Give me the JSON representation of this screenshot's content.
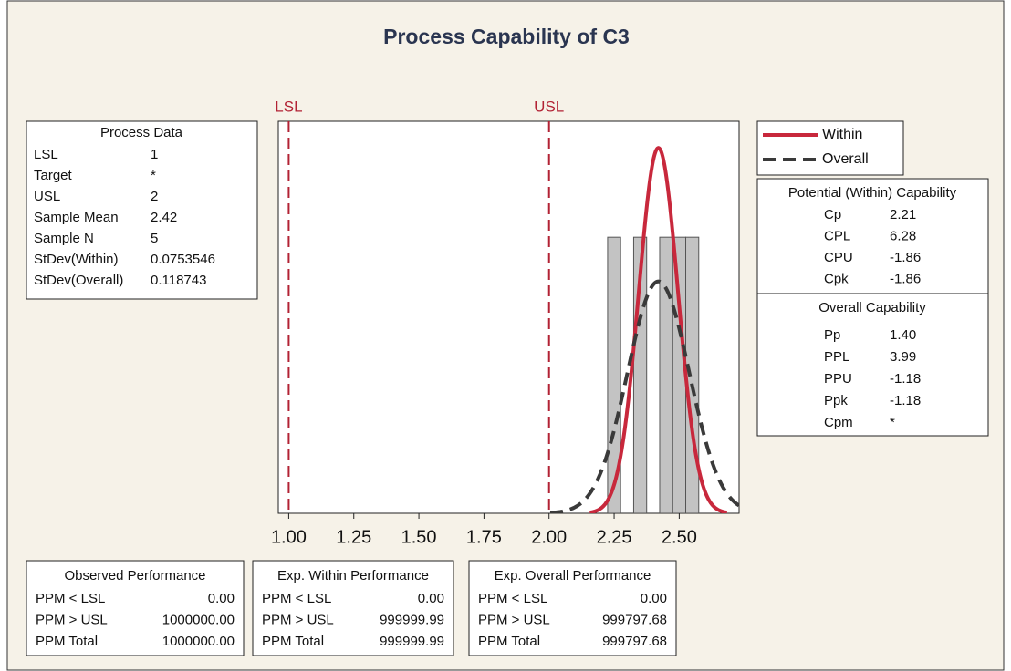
{
  "chart_data": {
    "type": "histogram",
    "title": "Process Capability of C3",
    "bins": [
      2.225,
      2.275,
      2.325,
      2.375,
      2.425,
      2.475,
      2.525,
      2.575
    ],
    "counts": [
      1,
      0,
      1,
      0,
      1,
      1,
      1
    ],
    "color": "#b9b9b9",
    "xlim": [
      0.96,
      2.73
    ],
    "xticks": [
      {
        "value": 1,
        "label": "1.00"
      },
      {
        "value": 1.25,
        "label": "1.25"
      },
      {
        "value": 1.5,
        "label": "1.50"
      },
      {
        "value": 1.75,
        "label": "1.75"
      },
      {
        "value": 2,
        "label": "2.00"
      },
      {
        "value": 2.25,
        "label": "2.25"
      },
      {
        "value": 2.5,
        "label": "2.50"
      }
    ],
    "ylim": [
      0,
      1.42
    ],
    "spec_color": "#b22234",
    "series": [
      {
        "name": "Within",
        "color": "#c8283c",
        "style": "solid"
      },
      {
        "name": "Overall",
        "color": "#3a3a3a",
        "style": "dashed"
      }
    ]
  },
  "process_data": {
    "title": "Process Data",
    "rows": [
      {
        "label": "LSL",
        "value": 1
      },
      {
        "label": "Target",
        "value": "*"
      },
      {
        "label": "USL",
        "value": 2
      },
      {
        "label": "Sample Mean",
        "value": 2.42
      },
      {
        "label": "Sample N",
        "value": 5
      },
      {
        "label": "StDev(Within)",
        "value": 0.0753546
      },
      {
        "label": "StDev(Overall)",
        "value": 0.118743
      }
    ]
  },
  "potential": {
    "title": "Potential (Within) Capability",
    "rows": [
      [
        "Cp",
        "2.21"
      ],
      [
        "CPL",
        "6.28"
      ],
      [
        "CPU",
        "-1.86"
      ],
      [
        "Cpk",
        "-1.86"
      ]
    ]
  },
  "overall": {
    "title": "Overall Capability",
    "rows": [
      [
        "Pp",
        "1.40"
      ],
      [
        "PPL",
        "3.99"
      ],
      [
        "PPU",
        "-1.18"
      ],
      [
        "Ppk",
        "-1.18"
      ],
      [
        "Cpm",
        "*"
      ]
    ]
  },
  "performance": [
    {
      "title": "Observed Performance",
      "rows": [
        [
          "PPM < LSL",
          "0.00"
        ],
        [
          "PPM > USL",
          "1000000.00"
        ],
        [
          "PPM Total",
          "1000000.00"
        ]
      ]
    },
    {
      "title": "Exp. Within Performance",
      "rows": [
        [
          "PPM < LSL",
          "0.00"
        ],
        [
          "PPM > USL",
          "999999.99"
        ],
        [
          "PPM Total",
          "999999.99"
        ]
      ]
    },
    {
      "title": "Exp. Overall Performance",
      "rows": [
        [
          "PPM < LSL",
          "0.00"
        ],
        [
          "PPM > USL",
          "999797.68"
        ],
        [
          "PPM Total",
          "999797.68"
        ]
      ]
    }
  ]
}
